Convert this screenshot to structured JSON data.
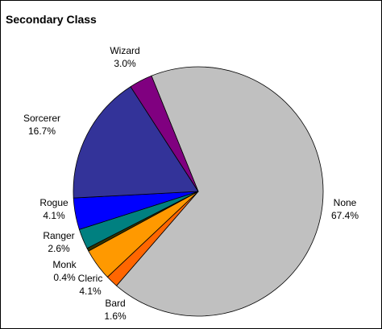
{
  "chart_data": {
    "type": "pie",
    "title": "Secondary Class",
    "categories": [
      "None",
      "Bard",
      "Cleric",
      "Monk",
      "Ranger",
      "Rogue",
      "Sorcerer",
      "Wizard"
    ],
    "values": [
      67.4,
      1.6,
      4.1,
      0.4,
      2.6,
      4.1,
      16.7,
      3.0
    ],
    "value_labels": [
      "67.4%",
      "1.6%",
      "4.1%",
      "0.4%",
      "2.6%",
      "4.1%",
      "16.7%",
      "3.0%"
    ],
    "colors": [
      "#c0c0c0",
      "#ff6600",
      "#ff9900",
      "#333300",
      "#008080",
      "#0000ff",
      "#333399",
      "#800080"
    ]
  }
}
